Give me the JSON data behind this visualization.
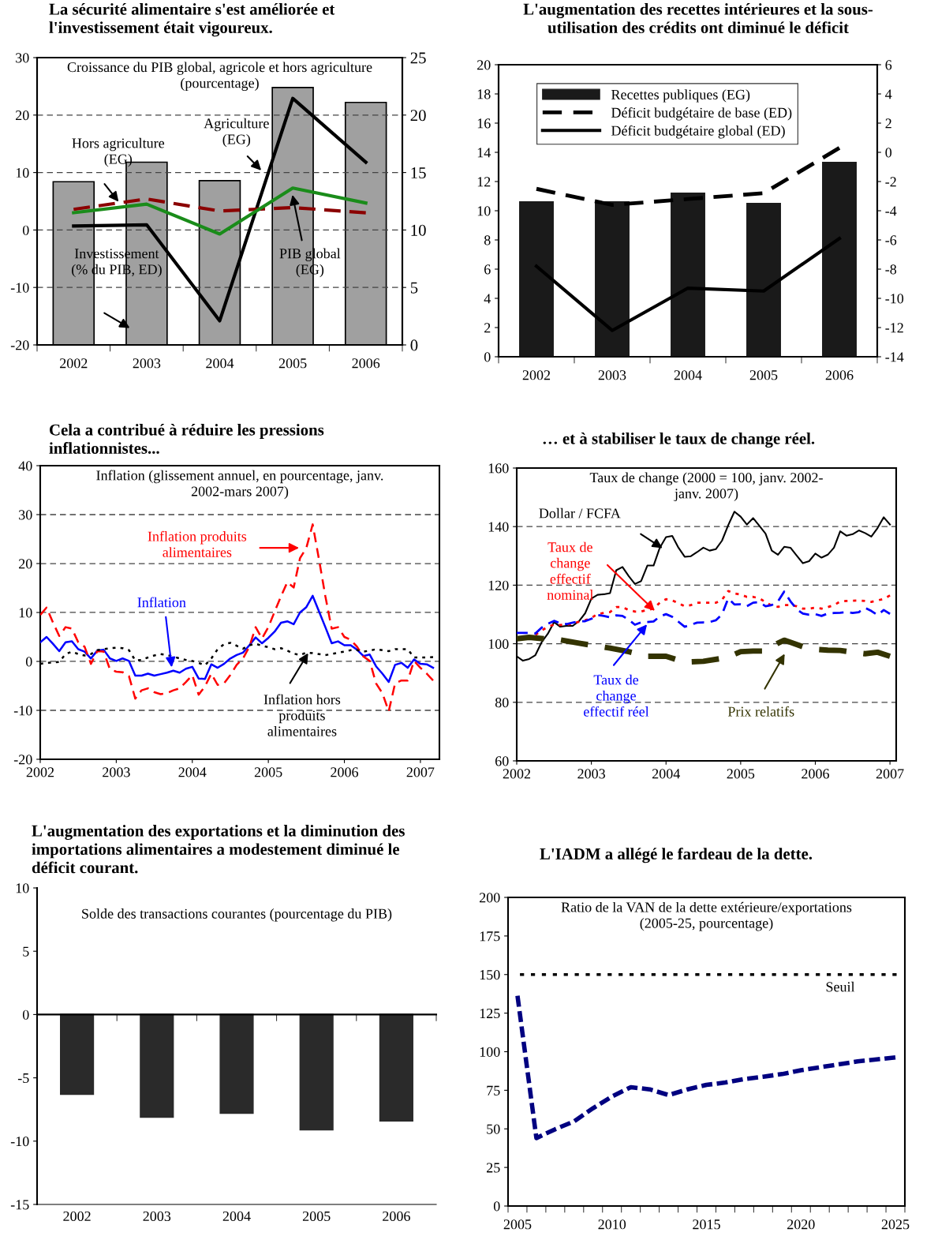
{
  "chart_data": [
    {
      "type": "bar",
      "title": "La sécurité alimentaire s'est améliorée et l'investissement était vigoureux.",
      "subtitle": "Croissance du PIB global, agricole et hors agriculture (pourcentage)",
      "categories": [
        "2002",
        "2003",
        "2004",
        "2005",
        "2006"
      ],
      "series": [
        {
          "name": "Investissement (% du PIB, ED)",
          "type": "bar",
          "axis": "y2",
          "color": "#a0a0a0",
          "values": [
            14.2,
            15.9,
            14.3,
            22.4,
            21.1
          ]
        },
        {
          "name": "Agriculture (EG)",
          "type": "line",
          "line_style": "solid",
          "color": "#000000",
          "values": [
            0.7,
            0.9,
            -15.8,
            22.9,
            11.8
          ]
        },
        {
          "name": "Hors agriculture (EG)",
          "type": "line",
          "line_style": "dashed",
          "color": "#8b0000",
          "values": [
            3.6,
            5.4,
            3.3,
            3.9,
            3.0
          ]
        },
        {
          "name": "PIB global (EG)",
          "type": "line",
          "line_style": "solid",
          "color": "#1a8c1a",
          "values": [
            3.0,
            4.5,
            -0.7,
            7.3,
            4.7
          ]
        }
      ],
      "ylim": [
        -20,
        30
      ],
      "yticks": [
        -20,
        -10,
        0,
        10,
        20,
        30
      ],
      "y2lim": [
        0,
        25
      ],
      "y2ticks": [
        0,
        5,
        10,
        15,
        20,
        25
      ],
      "grid": "y"
    },
    {
      "type": "bar",
      "title": "L'augmentation des recettes intérieures et la sous-utilisation des crédits ont diminué le déficit",
      "categories": [
        "2002",
        "2003",
        "2004",
        "2005",
        "2006"
      ],
      "series": [
        {
          "name": "Recettes publiques (EG)",
          "type": "bar",
          "color": "#1a1a1a",
          "values": [
            10.6,
            10.6,
            11.2,
            10.5,
            13.3
          ]
        },
        {
          "name": "Déficit budgétaire de base (ED)",
          "type": "line",
          "axis": "y2",
          "line_style": "dashed",
          "color": "#000000",
          "values": [
            -2.5,
            -3.6,
            -3.2,
            -2.8,
            0.3
          ]
        },
        {
          "name": "Déficit budgétaire global (ED)",
          "type": "line",
          "axis": "y2",
          "line_style": "solid",
          "color": "#000000",
          "values": [
            -7.8,
            -12.2,
            -9.3,
            -9.5,
            -5.9
          ]
        }
      ],
      "ylim": [
        0,
        20
      ],
      "yticks": [
        0,
        2,
        4,
        6,
        8,
        10,
        12,
        14,
        16,
        18,
        20
      ],
      "y2lim": [
        -14,
        6
      ],
      "y2ticks": [
        -14,
        -12,
        -10,
        -8,
        -6,
        -4,
        -2,
        0,
        2,
        4,
        6
      ],
      "legend": "top left"
    },
    {
      "type": "line",
      "title": "Cela a contribué à réduire les pressions inflationnistes...",
      "subtitle": "Inflation (glissement annuel, en pourcentage, janv. 2002-mars 2007)",
      "x": [
        "2002-01",
        "2002-02",
        "2002-03",
        "2002-04",
        "2002-05",
        "2002-06",
        "2002-07",
        "2002-08",
        "2002-09",
        "2002-10",
        "2002-11",
        "2002-12",
        "2003-01",
        "2003-02",
        "2003-03",
        "2003-04",
        "2003-05",
        "2003-06",
        "2003-07",
        "2003-08",
        "2003-09",
        "2003-10",
        "2003-11",
        "2003-12",
        "2004-01",
        "2004-02",
        "2004-03",
        "2004-04",
        "2004-05",
        "2004-06",
        "2004-07",
        "2004-08",
        "2004-09",
        "2004-10",
        "2004-11",
        "2004-12",
        "2005-01",
        "2005-02",
        "2005-03",
        "2005-04",
        "2005-05",
        "2005-06",
        "2005-07",
        "2005-08",
        "2005-09",
        "2005-10",
        "2005-11",
        "2005-12",
        "2006-01",
        "2006-02",
        "2006-03",
        "2006-04",
        "2006-05",
        "2006-06",
        "2006-07",
        "2006-08",
        "2006-09",
        "2006-10",
        "2006-11",
        "2006-12",
        "2007-01",
        "2007-02",
        "2007-03"
      ],
      "series": [
        {
          "name": "Inflation",
          "color": "#0000ff",
          "line_style": "solid",
          "values": [
            3.9,
            5.0,
            3.6,
            2.1,
            3.9,
            4.1,
            2.5,
            2.0,
            0.6,
            2.2,
            2.4,
            0.6,
            0.1,
            0.6,
            0.1,
            -2.9,
            -2.9,
            -2.5,
            -2.9,
            -2.6,
            -2.3,
            -1.9,
            -2.3,
            -1.5,
            -1.1,
            -3.5,
            -3.6,
            -0.6,
            -1.3,
            -0.5,
            0.6,
            1.3,
            1.8,
            3.3,
            4.9,
            3.7,
            4.8,
            6.1,
            7.9,
            8.2,
            7.6,
            10.0,
            11.1,
            13.4,
            10.2,
            7.0,
            3.7,
            4.1,
            3.3,
            3.3,
            2.4,
            1.1,
            1.4,
            -1.0,
            -2.5,
            -4.2,
            -0.7,
            -0.3,
            -1.3,
            0.4,
            -0.5,
            -0.6,
            -1.3
          ]
        },
        {
          "name": "Inflation produits alimentaires",
          "color": "#ff0000",
          "line_style": "dashed",
          "values": [
            9.5,
            11.0,
            8.0,
            5.2,
            7.0,
            6.7,
            3.9,
            3.0,
            -0.5,
            2.1,
            2.0,
            -1.6,
            -2.1,
            -2.2,
            -3.0,
            -7.6,
            -5.9,
            -5.5,
            -6.3,
            -6.7,
            -6.5,
            -5.9,
            -5.5,
            -4.2,
            -2.8,
            -6.8,
            -5.1,
            -2.5,
            -4.8,
            -4.5,
            -2.8,
            -0.7,
            0.6,
            3.0,
            7.0,
            4.7,
            7.0,
            10.2,
            13.3,
            16.2,
            15.1,
            21.1,
            23.2,
            28.0,
            20.8,
            13.3,
            6.7,
            7.0,
            5.0,
            4.4,
            3.0,
            1.0,
            0.1,
            -4.5,
            -6.5,
            -10.2,
            -4.5,
            -3.9,
            -3.9,
            0.1,
            -1.3,
            -2.5,
            -3.9
          ]
        },
        {
          "name": "Inflation hors produits alimentaires",
          "color": "#000000",
          "line_style": "dotted",
          "values": [
            -0.5,
            -0.3,
            -0.2,
            -0.1,
            1.5,
            2.0,
            1.5,
            1.2,
            1.5,
            2.3,
            2.5,
            2.7,
            2.8,
            2.7,
            2.3,
            0.2,
            0.3,
            0.8,
            1.2,
            1.5,
            1.3,
            1.0,
            0.6,
            0.3,
            0.1,
            -0.3,
            -0.8,
            0.6,
            2.5,
            3.5,
            3.8,
            3.2,
            2.6,
            3.3,
            3.6,
            3.2,
            2.9,
            2.5,
            2.7,
            2.2,
            1.6,
            1.3,
            1.8,
            1.7,
            1.5,
            1.3,
            1.5,
            1.8,
            2.0,
            2.3,
            2.3,
            2.0,
            2.2,
            2.5,
            2.3,
            2.1,
            2.5,
            2.5,
            2.5,
            0.8,
            0.8,
            0.8,
            0.9
          ]
        }
      ],
      "xlim": [
        "2002-01",
        "2007-04"
      ],
      "xticks": [
        {
          "value": "2002-01",
          "label": "2002"
        },
        {
          "value": "2003-01",
          "label": "2003"
        },
        {
          "value": "2004-01",
          "label": "2004"
        },
        {
          "value": "2005-01",
          "label": "2005"
        },
        {
          "value": "2006-01",
          "label": "2006"
        },
        {
          "value": "2007-01",
          "label": "2007"
        }
      ],
      "ylim": [
        -20,
        40
      ],
      "yticks": [
        -20,
        -10,
        0,
        10,
        20,
        30,
        40
      ],
      "grid": "y"
    },
    {
      "type": "line",
      "title": "… et à stabiliser le taux de change réel.",
      "subtitle": "Taux de change (2000 = 100, janv. 2002-janv. 2007)",
      "x": [
        "2002-01",
        "2002-02",
        "2002-03",
        "2002-04",
        "2002-05",
        "2002-06",
        "2002-07",
        "2002-08",
        "2002-09",
        "2002-10",
        "2002-11",
        "2002-12",
        "2003-01",
        "2003-02",
        "2003-03",
        "2003-04",
        "2003-05",
        "2003-06",
        "2003-07",
        "2003-08",
        "2003-09",
        "2003-10",
        "2003-11",
        "2003-12",
        "2004-01",
        "2004-02",
        "2004-03",
        "2004-04",
        "2004-05",
        "2004-06",
        "2004-07",
        "2004-08",
        "2004-09",
        "2004-10",
        "2004-11",
        "2004-12",
        "2005-01",
        "2005-02",
        "2005-03",
        "2005-04",
        "2005-05",
        "2005-06",
        "2005-07",
        "2005-08",
        "2005-09",
        "2005-10",
        "2005-11",
        "2005-12",
        "2006-01",
        "2006-02",
        "2006-03",
        "2006-04",
        "2006-05",
        "2006-06",
        "2006-07",
        "2006-08",
        "2006-09",
        "2006-10",
        "2006-11",
        "2006-12",
        "2007-01"
      ],
      "series": [
        {
          "name": "Dollar / FCFA",
          "color": "#000000",
          "line_style": "solid",
          "values": [
            95.7,
            94.2,
            94.8,
            96.1,
            100.5,
            103.4,
            107.4,
            105.8,
            106.1,
            106.1,
            107.7,
            110.4,
            115.4,
            116.7,
            116.9,
            117.3,
            125.1,
            126.2,
            123.1,
            120.4,
            121.4,
            126.7,
            126.7,
            132.8,
            136.4,
            136.8,
            132.8,
            129.7,
            129.9,
            131.3,
            132.8,
            131.8,
            132.3,
            135.2,
            140.5,
            145.1,
            143.4,
            140.7,
            142.9,
            140.3,
            137.6,
            131.8,
            130.4,
            133.1,
            132.8,
            130.1,
            127.5,
            128.2,
            130.8,
            129.4,
            130.4,
            132.8,
            138.4,
            136.9,
            137.4,
            138.7,
            137.8,
            136.6,
            139.5,
            143.2,
            140.7
          ]
        },
        {
          "name": "Taux de change effectif nominal",
          "color": "#ff0000",
          "line_style": "dotted",
          "values": [
            null,
            null,
            null,
            103.0,
            104.5,
            105.8,
            106.5,
            106.4,
            106.5,
            106.8,
            107.5,
            108.0,
            108.8,
            110.2,
            110.5,
            110.8,
            112.5,
            112.5,
            111.5,
            111.0,
            111.0,
            111.5,
            112.0,
            114.0,
            115.2,
            114.8,
            113.8,
            112.8,
            113.2,
            114.0,
            114.0,
            114.0,
            114.0,
            115.0,
            118.0,
            117.2,
            116.8,
            116.0,
            116.0,
            115.5,
            114.2,
            113.0,
            112.6,
            113.2,
            113.2,
            112.8,
            112.0,
            112.0,
            112.3,
            112.0,
            112.5,
            113.2,
            114.4,
            114.6,
            114.7,
            114.8,
            114.6,
            114.3,
            114.8,
            115.3,
            116.5
          ]
        },
        {
          "name": "Taux de change effectif réel",
          "color": "#0000ff",
          "line_style": "dashed",
          "values": [
            103.7,
            103.7,
            103.7,
            103.5,
            105.5,
            106.8,
            107.8,
            107.0,
            106.7,
            107.2,
            107.7,
            107.7,
            108.5,
            109.8,
            109.5,
            109.0,
            109.7,
            109.5,
            108.2,
            106.5,
            107.3,
            107.4,
            107.6,
            109.3,
            110.1,
            109.2,
            107.5,
            105.8,
            106.5,
            107.2,
            107.3,
            107.4,
            108.0,
            110.0,
            115.5,
            113.4,
            113.5,
            112.8,
            114.0,
            114.2,
            112.8,
            113.2,
            114.5,
            117.8,
            114.5,
            111.8,
            110.3,
            109.9,
            110.1,
            109.5,
            110.3,
            110.5,
            110.6,
            110.8,
            110.5,
            110.8,
            112.3,
            111.2,
            109.8,
            111.5,
            110.2
          ]
        },
        {
          "name": "Prix relatifs",
          "color": "#333300",
          "line_style": "dashed",
          "x": [
            "2002-01",
            "2002-03",
            "2002-05",
            "2002-08",
            "2002-11",
            "2003-01",
            "2003-04",
            "2003-07",
            "2003-10",
            "2004-01",
            "2004-04",
            "2004-07",
            "2004-10",
            "2004-11",
            "2005-01",
            "2005-03",
            "2005-05",
            "2005-07",
            "2005-08",
            "2005-09",
            "2005-11",
            "2006-01",
            "2006-03",
            "2006-05",
            "2006-07",
            "2006-09",
            "2006-11",
            "2007-01"
          ],
          "values": [
            101.7,
            102.2,
            101.8,
            101.3,
            100.2,
            99.5,
            98.5,
            97.3,
            95.7,
            95.7,
            93.7,
            94.0,
            95.0,
            95.5,
            97.3,
            97.5,
            97.5,
            100.2,
            101.2,
            100.5,
            99.0,
            98.1,
            97.8,
            97.7,
            97.1,
            96.6,
            97.1,
            95.7
          ]
        }
      ],
      "xlim": [
        "2002-01",
        "2007-02"
      ],
      "xticks": [
        {
          "value": "2002-01",
          "label": "2002"
        },
        {
          "value": "2003-01",
          "label": "2003"
        },
        {
          "value": "2004-01",
          "label": "2004"
        },
        {
          "value": "2005-01",
          "label": "2005"
        },
        {
          "value": "2006-01",
          "label": "2006"
        },
        {
          "value": "2007-01",
          "label": "2007"
        }
      ],
      "ylim": [
        60,
        160
      ],
      "yticks": [
        60,
        80,
        100,
        120,
        140,
        160
      ],
      "grid": "y"
    },
    {
      "type": "bar",
      "title": "L'augmentation des exportations et la diminution des importations alimentaires a modestement diminué le déficit courant.",
      "subtitle": "Solde des transactions courantes (pourcentage du PIB)",
      "categories": [
        "2002",
        "2003",
        "2004",
        "2005",
        "2006"
      ],
      "series": [
        {
          "color": "#2a2a2a",
          "values": [
            -6.3,
            -8.1,
            -7.8,
            -9.1,
            -8.4
          ]
        }
      ],
      "ylim": [
        -15,
        10
      ],
      "yticks": [
        -15,
        -10,
        -5,
        0,
        5,
        10
      ]
    },
    {
      "type": "line",
      "title": "L'IADM a allégé le fardeau de la dette.",
      "subtitle": "Ratio de la VAN de la dette extérieure/exportations (2005-25, pourcentage)",
      "categories": [
        "2005",
        null,
        null,
        null,
        null,
        "2010",
        null,
        null,
        null,
        null,
        "2015",
        null,
        null,
        null,
        null,
        "2020",
        null,
        null,
        null,
        null,
        "2025"
      ],
      "series": [
        {
          "color": "#000080",
          "line_style": "dashed",
          "values": [
            136.2,
            44,
            49.8,
            54.9,
            63.4,
            71,
            77,
            75.6,
            71.9,
            75.6,
            78.5,
            80,
            82.3,
            83.8,
            85.5,
            88,
            89.9,
            91.8,
            93.7,
            95,
            96.3
          ]
        }
      ],
      "ylim": [
        0,
        200
      ],
      "yticks": [
        0,
        25,
        50,
        75,
        100,
        125,
        150,
        175,
        200
      ],
      "ref_lines": [
        {
          "axis": "y",
          "value": 150,
          "label": "Seuil",
          "color": "#000000",
          "line_style": "dotted"
        }
      ]
    }
  ]
}
